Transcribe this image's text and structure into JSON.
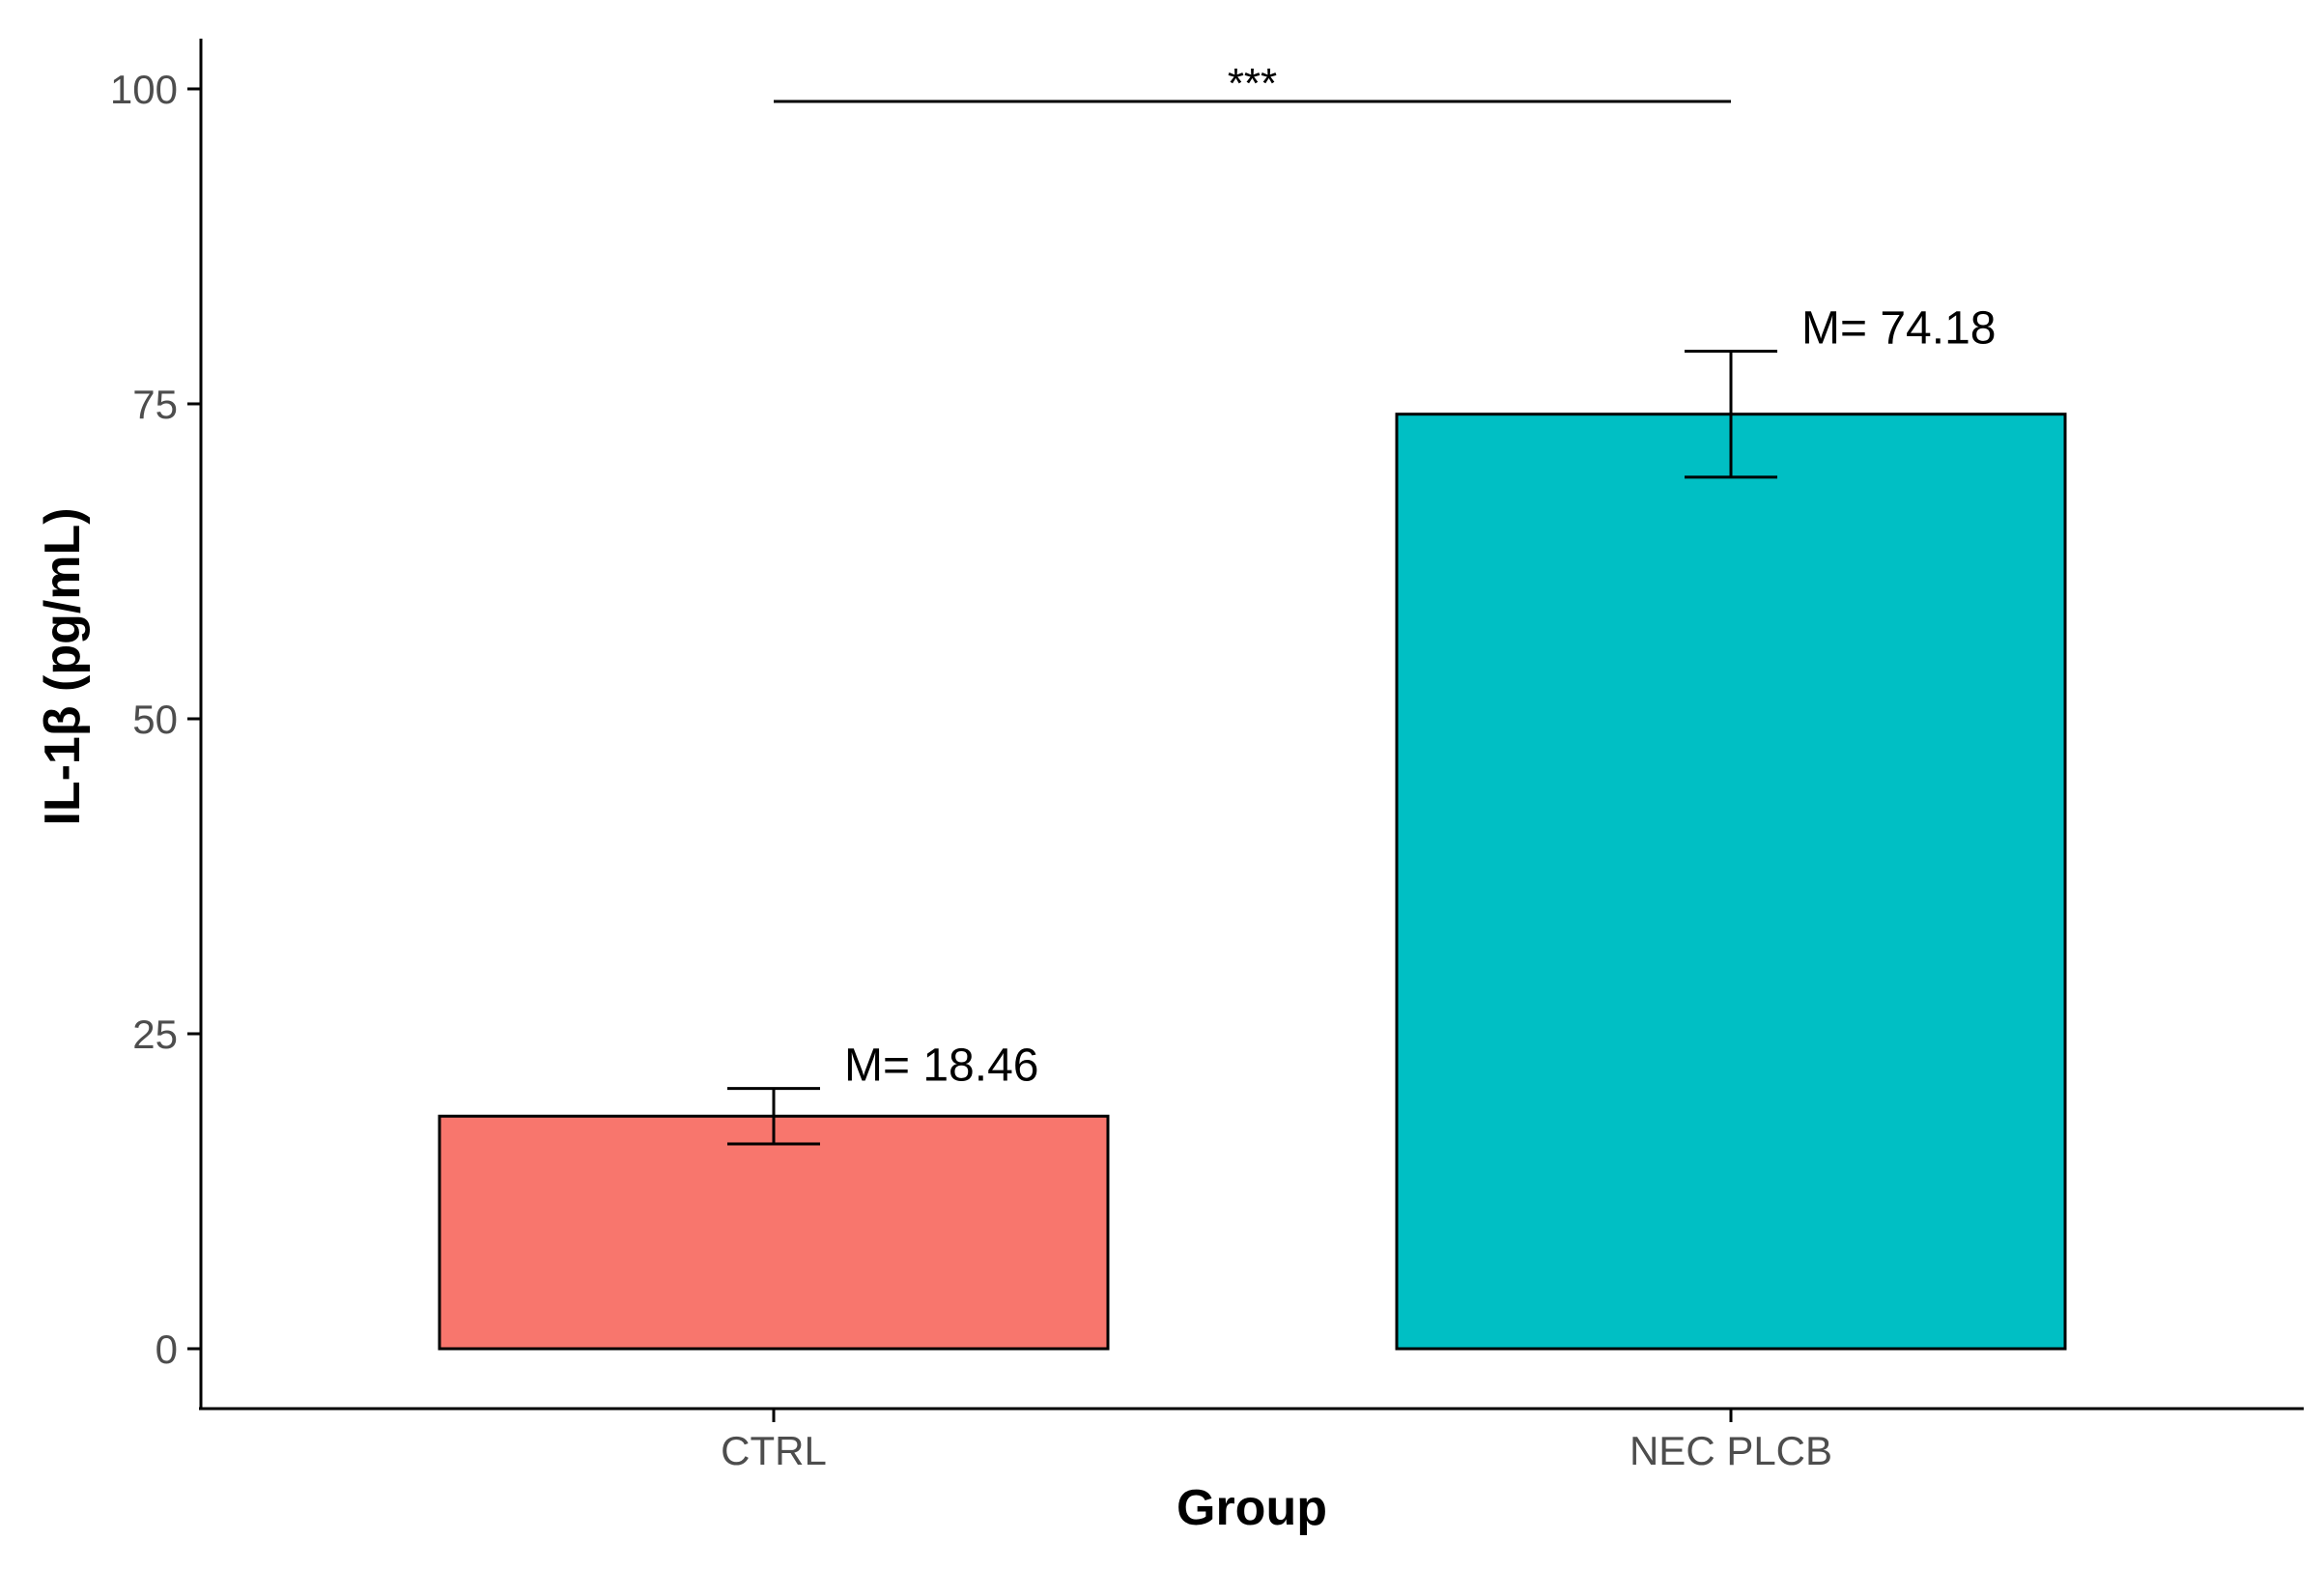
{
  "chart_data": {
    "type": "bar",
    "xlabel": "Group",
    "ylabel": "IL-1β (pg/mL)",
    "categories": [
      "CTRL",
      "NEC PLCB"
    ],
    "values": [
      18.46,
      74.18
    ],
    "errors": [
      2.2,
      5.0
    ],
    "value_labels": [
      "M= 18.46",
      "M= 74.18"
    ],
    "colors": [
      "#F8766D",
      "#00BFC4"
    ],
    "ylim": [
      0,
      100
    ],
    "yticks": [
      0,
      25,
      50,
      75,
      100
    ],
    "grid": false,
    "legend": "none",
    "significance": {
      "from": "CTRL",
      "to": "NEC PLCB",
      "y": 99,
      "label": "***"
    }
  }
}
